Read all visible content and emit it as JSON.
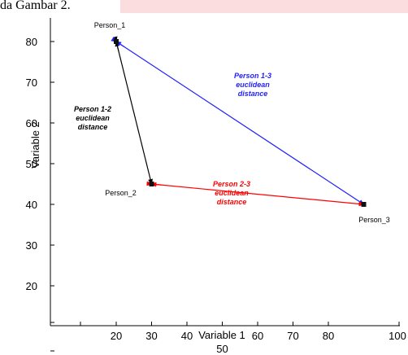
{
  "banner": {
    "text": "da Gambar 2."
  },
  "colors": {
    "d12": "#000000",
    "d13": "#1f1fff",
    "d23": "#ff0000",
    "highlight": "#fbdcdf"
  },
  "chart_data": {
    "type": "scatter",
    "title": "",
    "xlabel": "Variable 1",
    "ylabel": "Variable 2",
    "xlim": [
      10,
      100
    ],
    "ylim": [
      0,
      85
    ],
    "x_ticks": [
      20,
      30,
      40,
      50,
      60,
      70,
      80,
      100
    ],
    "y_ticks": [
      20,
      30,
      40,
      50,
      60,
      70,
      80
    ],
    "grid": false,
    "points": [
      {
        "label": "Person_1",
        "x": 20,
        "y": 80
      },
      {
        "label": "Person_2",
        "x": 30,
        "y": 45
      },
      {
        "label": "Person_3",
        "x": 90,
        "y": 40
      }
    ],
    "distances": [
      {
        "from": "Person_1",
        "to": "Person_2",
        "label": [
          "Person 1-2",
          "euclidean",
          "distance"
        ],
        "color": "#000000"
      },
      {
        "from": "Person_1",
        "to": "Person_3",
        "label": [
          "Person 1-3",
          "euclidean",
          "distance"
        ],
        "color": "#1f1fff"
      },
      {
        "from": "Person_2",
        "to": "Person_3",
        "label": [
          "Person 2-3",
          "euclidean",
          "distance"
        ],
        "color": "#ff0000"
      }
    ]
  }
}
